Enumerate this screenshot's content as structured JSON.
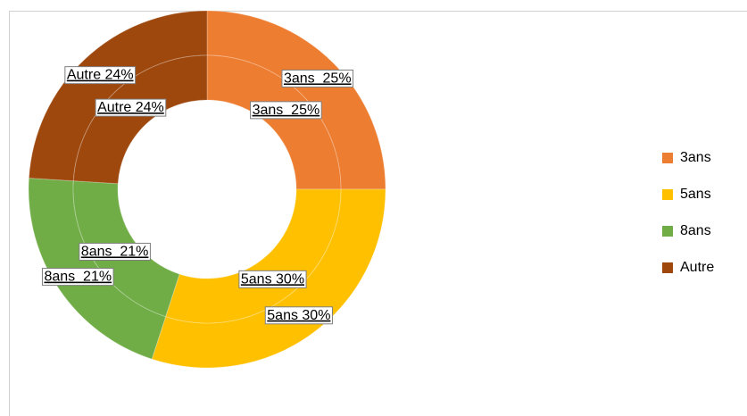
{
  "chart_data": {
    "type": "doughnut",
    "categories": [
      "3ans",
      "5ans",
      "8ans",
      "Autre"
    ],
    "colors": [
      "#ED7D31",
      "#FFC000",
      "#70AD47",
      "#9E480E"
    ],
    "series": [
      {
        "values": [
          25,
          30,
          21,
          24
        ],
        "value_labels": [
          "3ans  25%",
          "5ans 30%",
          "8ans  21%",
          "Autre 24%"
        ]
      },
      {
        "values": [
          25,
          30,
          21,
          24
        ],
        "value_labels": [
          "3ans  25%",
          "5ans 30%",
          "8ans  21%",
          "Autre 24%"
        ]
      }
    ],
    "legend": "right"
  }
}
